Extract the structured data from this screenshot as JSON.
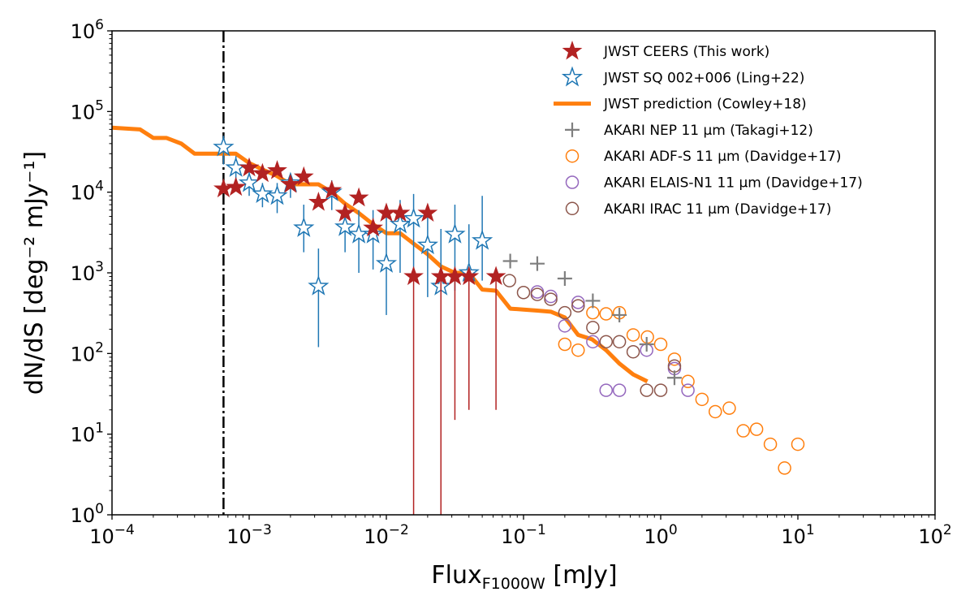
{
  "chart_data": {
    "type": "scatter",
    "xlabel": {
      "main": "Flux",
      "sub": "F1000W",
      "unit": " [mJy]"
    },
    "ylabel": "dN/dS [deg⁻² mJy⁻¹]",
    "xscale": "log",
    "yscale": "log",
    "xlim": [
      0.0001,
      100
    ],
    "ylim": [
      1,
      1000000
    ],
    "x_ticks": [
      {
        "value": 0.0001,
        "base": "10",
        "exp": "−4"
      },
      {
        "value": 0.001,
        "base": "10",
        "exp": "−3"
      },
      {
        "value": 0.01,
        "base": "10",
        "exp": "−2"
      },
      {
        "value": 0.1,
        "base": "10",
        "exp": "−1"
      },
      {
        "value": 1,
        "base": "10",
        "exp": "0"
      },
      {
        "value": 10,
        "base": "10",
        "exp": "1"
      },
      {
        "value": 100,
        "base": "10",
        "exp": "2"
      }
    ],
    "y_ticks": [
      {
        "value": 1,
        "base": "10",
        "exp": "0"
      },
      {
        "value": 10,
        "base": "10",
        "exp": "1"
      },
      {
        "value": 100,
        "base": "10",
        "exp": "2"
      },
      {
        "value": 1000,
        "base": "10",
        "exp": "3"
      },
      {
        "value": 10000,
        "base": "10",
        "exp": "4"
      },
      {
        "value": 100000,
        "base": "10",
        "exp": "5"
      },
      {
        "value": 1000000,
        "base": "10",
        "exp": "6"
      }
    ],
    "vline": {
      "x": 0.00065,
      "style": "dashdot",
      "color": "#000000"
    },
    "legend_position": "top-right",
    "series": [
      {
        "name": "JWST CEERS (This work)",
        "marker": "star-filled",
        "color": "#b22222",
        "points": [
          {
            "x": 0.00065,
            "y": 11000,
            "ylo": 11000,
            "yhi": 11000
          },
          {
            "x": 0.0008,
            "y": 11500,
            "ylo": 11500,
            "yhi": 11500
          },
          {
            "x": 0.001,
            "y": 20000,
            "ylo": 20000,
            "yhi": 20000
          },
          {
            "x": 0.00125,
            "y": 17000,
            "ylo": 17000,
            "yhi": 17000
          },
          {
            "x": 0.0016,
            "y": 18500,
            "ylo": 18500,
            "yhi": 18500
          },
          {
            "x": 0.002,
            "y": 12500,
            "ylo": 12500,
            "yhi": 12500
          },
          {
            "x": 0.0025,
            "y": 15500,
            "ylo": 15500,
            "yhi": 15500
          },
          {
            "x": 0.0032,
            "y": 7500,
            "ylo": 7500,
            "yhi": 7500
          },
          {
            "x": 0.004,
            "y": 10500,
            "ylo": 10500,
            "yhi": 10500
          },
          {
            "x": 0.005,
            "y": 5500,
            "ylo": 5500,
            "yhi": 5500
          },
          {
            "x": 0.0063,
            "y": 8500,
            "ylo": 8500,
            "yhi": 8500
          },
          {
            "x": 0.008,
            "y": 3600,
            "ylo": 3600,
            "yhi": 3600
          },
          {
            "x": 0.01,
            "y": 5500,
            "ylo": 5500,
            "yhi": 5500
          },
          {
            "x": 0.0126,
            "y": 5500,
            "ylo": 5500,
            "yhi": 5500
          },
          {
            "x": 0.0158,
            "y": 900,
            "ylo": 1,
            "yhi": 900
          },
          {
            "x": 0.02,
            "y": 5500,
            "ylo": 5500,
            "yhi": 5500
          },
          {
            "x": 0.025,
            "y": 900,
            "ylo": 1,
            "yhi": 900
          },
          {
            "x": 0.0316,
            "y": 900,
            "ylo": 15,
            "yhi": 900
          },
          {
            "x": 0.04,
            "y": 900,
            "ylo": 20,
            "yhi": 900
          },
          {
            "x": 0.063,
            "y": 900,
            "ylo": 20,
            "yhi": 900
          }
        ]
      },
      {
        "name": "JWST SQ 002+006 (Ling+22)",
        "marker": "star-open",
        "color": "#1f77b4",
        "points": [
          {
            "x": 0.00065,
            "y": 36000,
            "ylo": 22000,
            "yhi": 50000
          },
          {
            "x": 0.0008,
            "y": 20000,
            "ylo": 13000,
            "yhi": 28000
          },
          {
            "x": 0.001,
            "y": 13000,
            "ylo": 9000,
            "yhi": 18000
          },
          {
            "x": 0.00125,
            "y": 9500,
            "ylo": 6500,
            "yhi": 13000
          },
          {
            "x": 0.0016,
            "y": 9000,
            "ylo": 5500,
            "yhi": 13000
          },
          {
            "x": 0.002,
            "y": 13000,
            "ylo": 8500,
            "yhi": 17000
          },
          {
            "x": 0.0025,
            "y": 3600,
            "ylo": 1800,
            "yhi": 7000
          },
          {
            "x": 0.0032,
            "y": 680,
            "ylo": 120,
            "yhi": 2000
          },
          {
            "x": 0.004,
            "y": 10000,
            "ylo": 6000,
            "yhi": 14000
          },
          {
            "x": 0.005,
            "y": 3700,
            "ylo": 1800,
            "yhi": 6500
          },
          {
            "x": 0.0063,
            "y": 3000,
            "ylo": 1000,
            "yhi": 6000
          },
          {
            "x": 0.008,
            "y": 3000,
            "ylo": 1100,
            "yhi": 6000
          },
          {
            "x": 0.01,
            "y": 1300,
            "ylo": 300,
            "yhi": 5500
          },
          {
            "x": 0.0126,
            "y": 4000,
            "ylo": 1000,
            "yhi": 8000
          },
          {
            "x": 0.0158,
            "y": 4700,
            "ylo": 1000,
            "yhi": 9500
          },
          {
            "x": 0.02,
            "y": 2200,
            "ylo": 500,
            "yhi": 5500
          },
          {
            "x": 0.025,
            "y": 680,
            "ylo": 200,
            "yhi": 3500
          },
          {
            "x": 0.0316,
            "y": 3000,
            "ylo": 600,
            "yhi": 7000
          },
          {
            "x": 0.04,
            "y": 1000,
            "ylo": 300,
            "yhi": 4000
          },
          {
            "x": 0.05,
            "y": 2500,
            "ylo": 800,
            "yhi": 9000
          }
        ]
      },
      {
        "name": "JWST prediction (Cowley+18)",
        "marker": "line",
        "color": "#ff7f0e",
        "points": [
          {
            "x": 0.0001,
            "y": 63000
          },
          {
            "x": 0.00016,
            "y": 60000
          },
          {
            "x": 0.0002,
            "y": 47000
          },
          {
            "x": 0.00025,
            "y": 47000
          },
          {
            "x": 0.00032,
            "y": 40000
          },
          {
            "x": 0.0004,
            "y": 30000
          },
          {
            "x": 0.0005,
            "y": 30000
          },
          {
            "x": 0.00063,
            "y": 30000
          },
          {
            "x": 0.0008,
            "y": 30000
          },
          {
            "x": 0.001,
            "y": 23000
          },
          {
            "x": 0.00126,
            "y": 19000
          },
          {
            "x": 0.00158,
            "y": 16000
          },
          {
            "x": 0.002,
            "y": 12500
          },
          {
            "x": 0.0025,
            "y": 12500
          },
          {
            "x": 0.0032,
            "y": 12500
          },
          {
            "x": 0.004,
            "y": 10000
          },
          {
            "x": 0.005,
            "y": 7200
          },
          {
            "x": 0.0063,
            "y": 5500
          },
          {
            "x": 0.008,
            "y": 4000
          },
          {
            "x": 0.01,
            "y": 3100
          },
          {
            "x": 0.0126,
            "y": 3100
          },
          {
            "x": 0.0158,
            "y": 2300
          },
          {
            "x": 0.02,
            "y": 1700
          },
          {
            "x": 0.025,
            "y": 1200
          },
          {
            "x": 0.0316,
            "y": 1000
          },
          {
            "x": 0.04,
            "y": 1000
          },
          {
            "x": 0.05,
            "y": 620
          },
          {
            "x": 0.063,
            "y": 600
          },
          {
            "x": 0.08,
            "y": 360
          },
          {
            "x": 0.1,
            "y": 350
          },
          {
            "x": 0.126,
            "y": 340
          },
          {
            "x": 0.158,
            "y": 330
          },
          {
            "x": 0.2,
            "y": 280
          },
          {
            "x": 0.25,
            "y": 170
          },
          {
            "x": 0.316,
            "y": 150
          },
          {
            "x": 0.4,
            "y": 110
          },
          {
            "x": 0.5,
            "y": 75
          },
          {
            "x": 0.63,
            "y": 55
          },
          {
            "x": 0.8,
            "y": 45
          }
        ]
      },
      {
        "name": "AKARI NEP 11 μm (Takagi+12)",
        "marker": "plus",
        "color": "#7f7f7f",
        "points": [
          {
            "x": 0.08,
            "y": 1400
          },
          {
            "x": 0.126,
            "y": 1300
          },
          {
            "x": 0.2,
            "y": 850
          },
          {
            "x": 0.32,
            "y": 450
          },
          {
            "x": 0.5,
            "y": 300
          },
          {
            "x": 0.79,
            "y": 130
          },
          {
            "x": 1.26,
            "y": 50
          }
        ]
      },
      {
        "name": "AKARI ADF-S 11 μm (Davidge+17)",
        "marker": "circle-open",
        "color": "#ff7f0e",
        "points": [
          {
            "x": 0.2,
            "y": 130
          },
          {
            "x": 0.25,
            "y": 110
          },
          {
            "x": 0.32,
            "y": 320
          },
          {
            "x": 0.4,
            "y": 310
          },
          {
            "x": 0.5,
            "y": 320
          },
          {
            "x": 0.63,
            "y": 170
          },
          {
            "x": 0.8,
            "y": 160
          },
          {
            "x": 1.0,
            "y": 130
          },
          {
            "x": 1.26,
            "y": 85
          },
          {
            "x": 1.58,
            "y": 45
          },
          {
            "x": 2.0,
            "y": 27
          },
          {
            "x": 2.5,
            "y": 19
          },
          {
            "x": 3.16,
            "y": 21
          },
          {
            "x": 4.0,
            "y": 11
          },
          {
            "x": 5.0,
            "y": 11.5
          },
          {
            "x": 6.3,
            "y": 7.5
          },
          {
            "x": 8.0,
            "y": 3.8
          },
          {
            "x": 10.0,
            "y": 7.5
          }
        ]
      },
      {
        "name": "AKARI ELAIS-N1 11 μm (Davidge+17)",
        "marker": "circle-open",
        "color": "#9467bd",
        "points": [
          {
            "x": 0.126,
            "y": 580
          },
          {
            "x": 0.158,
            "y": 510
          },
          {
            "x": 0.2,
            "y": 220
          },
          {
            "x": 0.25,
            "y": 430
          },
          {
            "x": 0.32,
            "y": 140
          },
          {
            "x": 0.4,
            "y": 35
          },
          {
            "x": 0.5,
            "y": 35
          },
          {
            "x": 0.79,
            "y": 110
          },
          {
            "x": 1.26,
            "y": 65
          },
          {
            "x": 1.58,
            "y": 35
          }
        ]
      },
      {
        "name": "AKARI IRAC 11 μm (Davidge+17)",
        "marker": "circle-open",
        "color": "#8c564b",
        "points": [
          {
            "x": 0.079,
            "y": 800
          },
          {
            "x": 0.1,
            "y": 570
          },
          {
            "x": 0.126,
            "y": 540
          },
          {
            "x": 0.158,
            "y": 470
          },
          {
            "x": 0.2,
            "y": 320
          },
          {
            "x": 0.25,
            "y": 390
          },
          {
            "x": 0.32,
            "y": 210
          },
          {
            "x": 0.4,
            "y": 140
          },
          {
            "x": 0.5,
            "y": 140
          },
          {
            "x": 0.63,
            "y": 105
          },
          {
            "x": 0.79,
            "y": 35
          },
          {
            "x": 1.0,
            "y": 35
          },
          {
            "x": 1.26,
            "y": 70
          }
        ]
      }
    ]
  }
}
